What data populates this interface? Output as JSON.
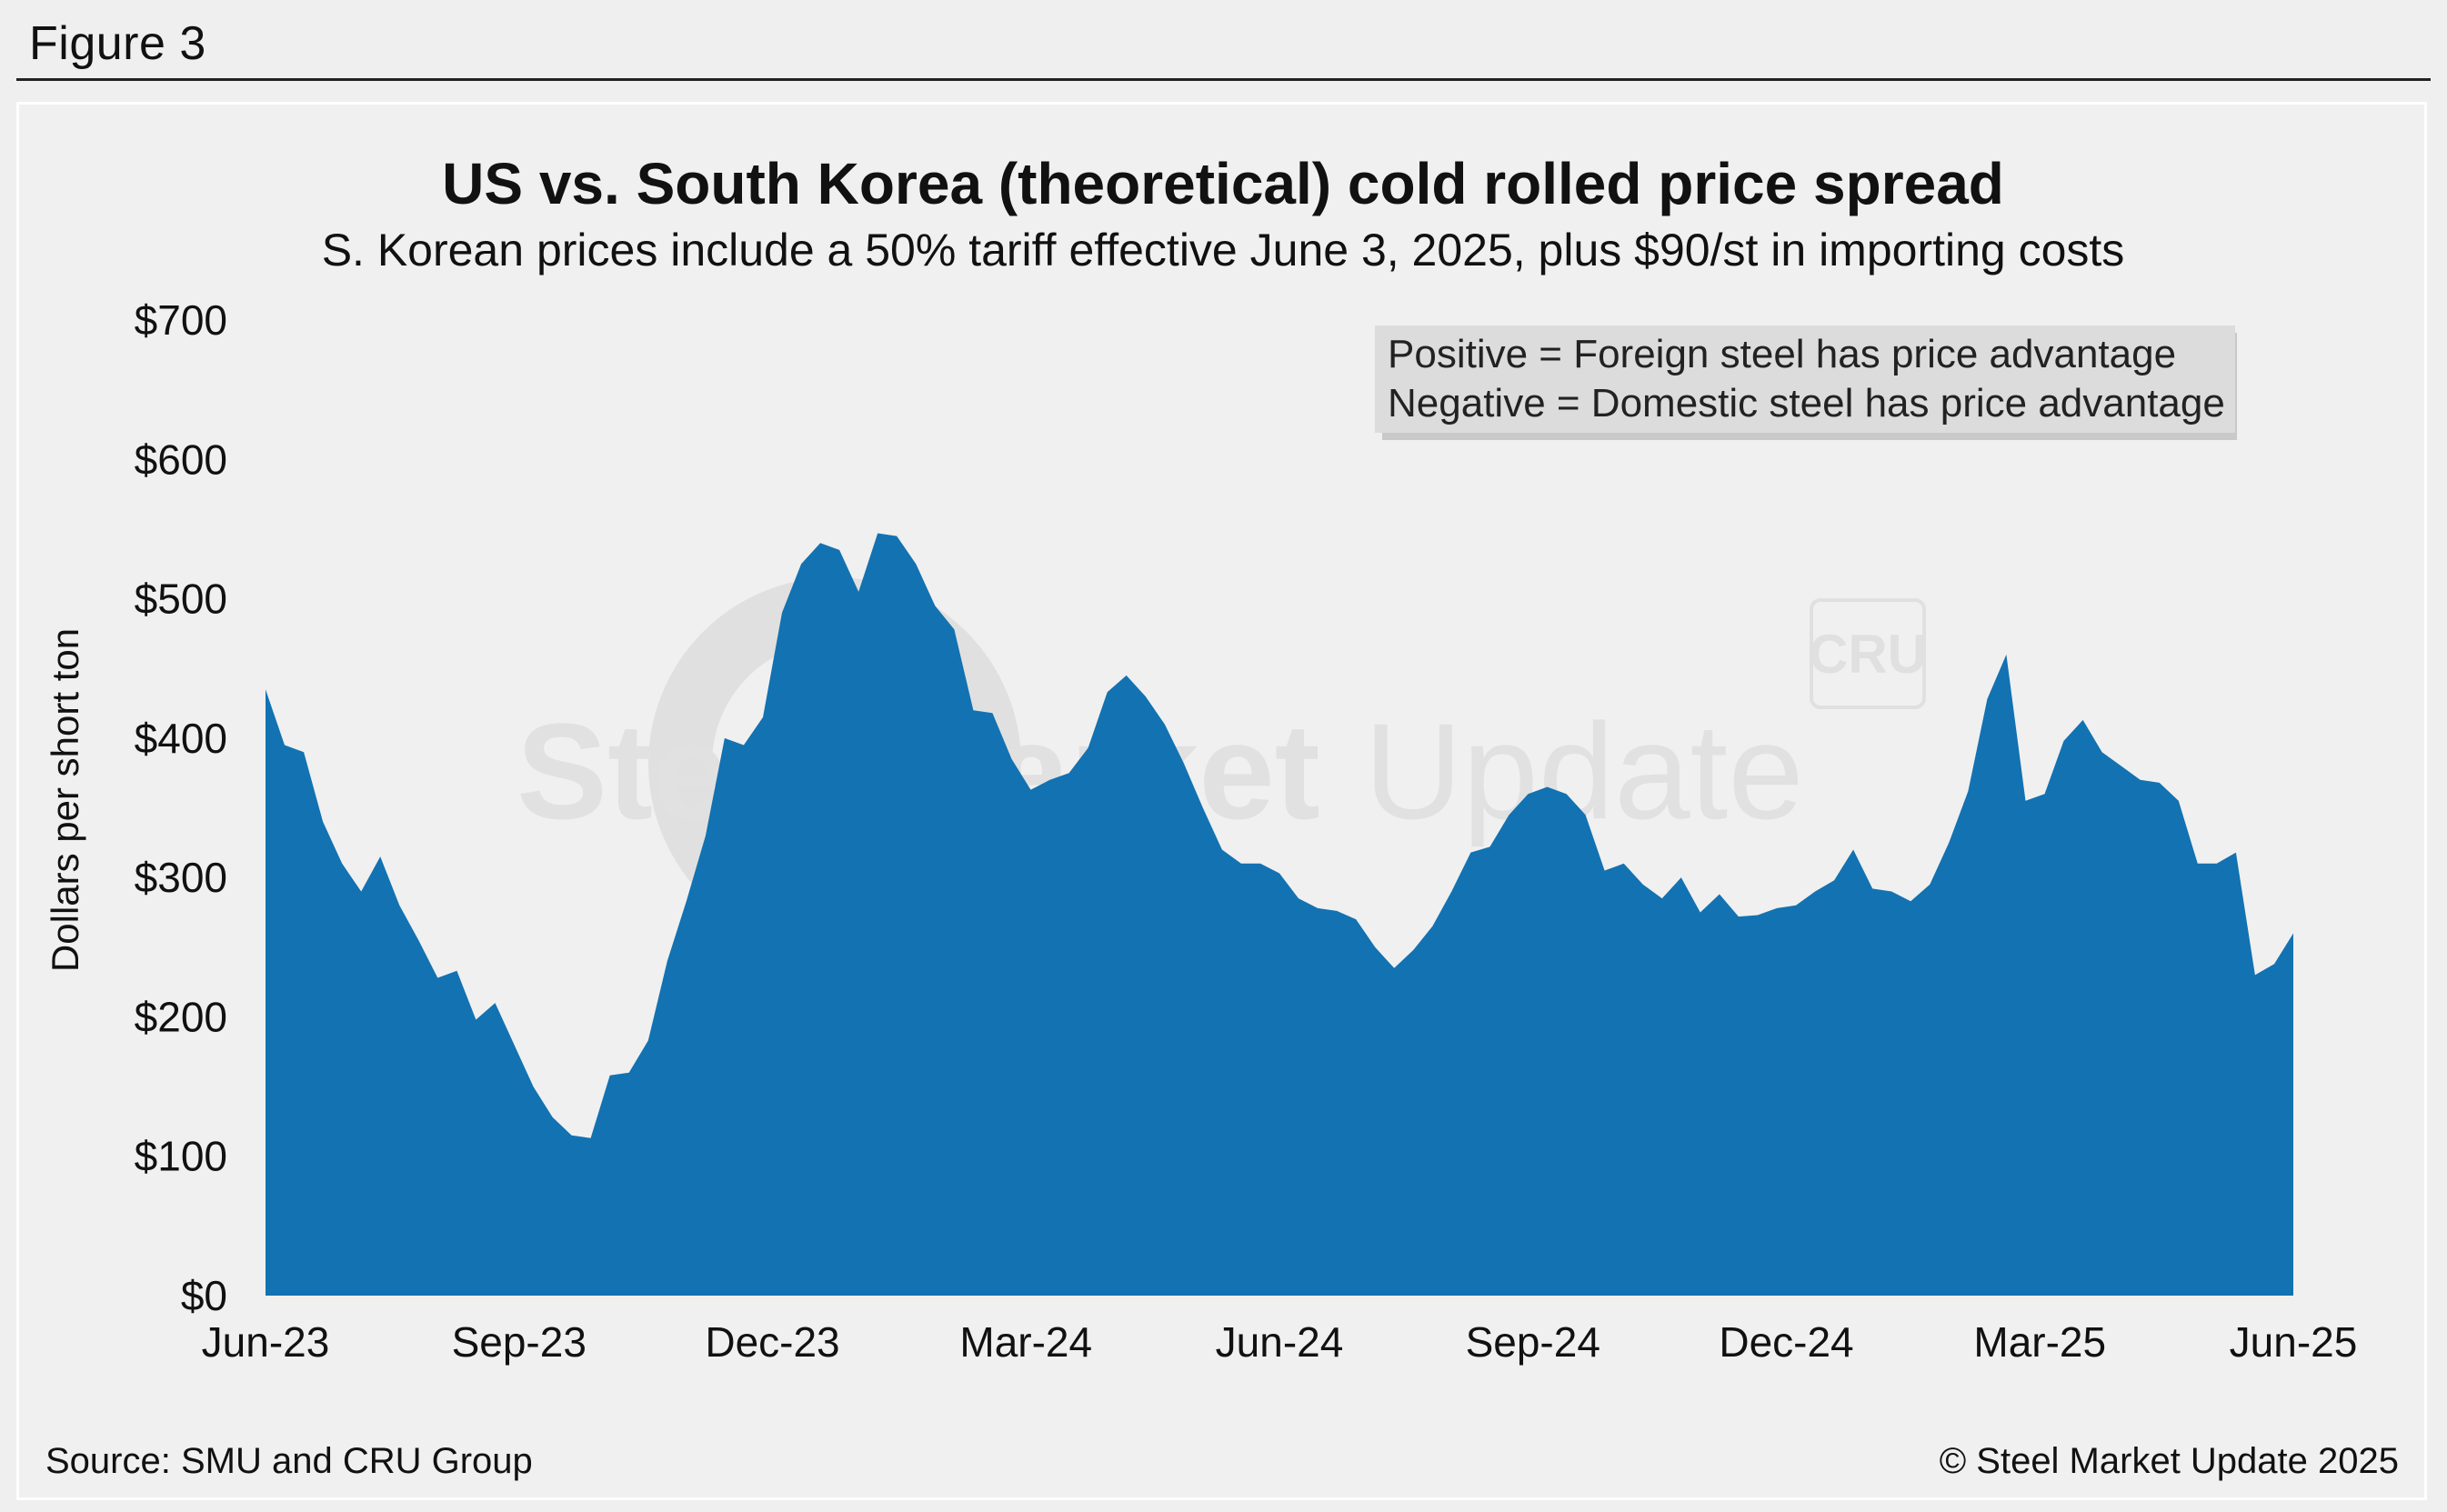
{
  "figure_label": "Figure 3",
  "source": "Source: SMU and CRU Group",
  "copyright": "© Steel Market Update 2025",
  "watermark": {
    "brand_bold": "Steel Market",
    "brand_light": "Update",
    "badge": "CRU"
  },
  "colors": {
    "area_fill": "#1272b2",
    "background": "#f0f0f0"
  },
  "chart_data": {
    "type": "area",
    "title": "US vs. South Korea (theoretical) cold rolled price spread",
    "subtitle": "S. Korean prices include a 50% tariff effective June 3, 2025, plus $90/st in importing costs",
    "ylabel": "Dollars per short ton",
    "xlabel": "",
    "ylim": [
      0,
      700
    ],
    "y_ticks": [
      "$0",
      "$100",
      "$200",
      "$300",
      "$400",
      "$500",
      "$600",
      "$700"
    ],
    "x_ticks": [
      "Jun-23",
      "Sep-23",
      "Dec-23",
      "Mar-24",
      "Jun-24",
      "Sep-24",
      "Dec-24",
      "Mar-25",
      "Jun-25"
    ],
    "grid": false,
    "legend_box": [
      "Positive = Foreign steel has price advantage",
      "Negative = Domestic steel has price advantage"
    ],
    "series": [
      {
        "name": "Price spread",
        "values": [
          435,
          395,
          390,
          340,
          310,
          290,
          315,
          280,
          255,
          228,
          233,
          198,
          210,
          180,
          150,
          128,
          115,
          113,
          158,
          160,
          183,
          240,
          283,
          330,
          400,
          395,
          415,
          490,
          525,
          540,
          535,
          505,
          547,
          545,
          525,
          495,
          478,
          420,
          418,
          385,
          363,
          370,
          375,
          393,
          433,
          445,
          430,
          410,
          382,
          350,
          320,
          310,
          310,
          303,
          285,
          278,
          276,
          270,
          250,
          235,
          248,
          265,
          290,
          318,
          322,
          345,
          360,
          365,
          360,
          345,
          305,
          310,
          295,
          285,
          300,
          275,
          288,
          272,
          273,
          278,
          280,
          290,
          298,
          320,
          292,
          290,
          283,
          295,
          325,
          362,
          428,
          460,
          355,
          360,
          398,
          413,
          390,
          380,
          370,
          368,
          355,
          310,
          310,
          318,
          230,
          238,
          260
        ]
      }
    ]
  }
}
